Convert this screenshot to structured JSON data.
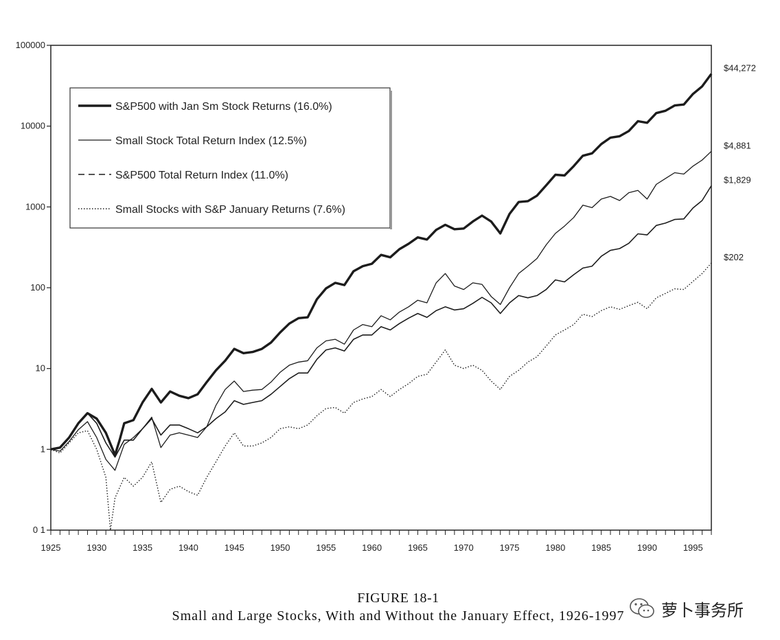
{
  "chart_data": {
    "type": "line",
    "yscale": "log",
    "ylim": [
      0.1,
      100000
    ],
    "xlim": [
      1925,
      1997
    ],
    "y_ticks": [
      {
        "value": 100000,
        "label": "100000"
      },
      {
        "value": 10000,
        "label": "10000"
      },
      {
        "value": 1000,
        "label": "1000"
      },
      {
        "value": 100,
        "label": "100"
      },
      {
        "value": 10,
        "label": "10"
      },
      {
        "value": 1,
        "label": "1"
      },
      {
        "value": 0.1,
        "label": "0 1"
      }
    ],
    "x_ticks": [
      1925,
      1930,
      1935,
      1940,
      1945,
      1950,
      1955,
      1960,
      1965,
      1970,
      1975,
      1980,
      1985,
      1990,
      1995
    ],
    "legend": "top-left",
    "series": [
      {
        "name": "S&P500 with Jan Sm Stock Returns (16.0%)",
        "style": "thick",
        "end_label": "$44,272",
        "end_value": 44272,
        "points": [
          [
            1925,
            1
          ],
          [
            1926,
            1.05
          ],
          [
            1927,
            1.4
          ],
          [
            1928,
            2.1
          ],
          [
            1929,
            2.8
          ],
          [
            1930,
            2.4
          ],
          [
            1931,
            1.6
          ],
          [
            1932,
            0.85
          ],
          [
            1932.5,
            1.3
          ],
          [
            1933,
            2.1
          ],
          [
            1934,
            2.3
          ],
          [
            1935,
            3.8
          ],
          [
            1936,
            5.6
          ],
          [
            1937,
            3.8
          ],
          [
            1938,
            5.2
          ],
          [
            1939,
            4.6
          ],
          [
            1940,
            4.3
          ],
          [
            1941,
            4.8
          ],
          [
            1942,
            6.8
          ],
          [
            1943,
            9.5
          ],
          [
            1944,
            12.5
          ],
          [
            1945,
            17.5
          ],
          [
            1946,
            15.5
          ],
          [
            1947,
            16
          ],
          [
            1948,
            17.5
          ],
          [
            1949,
            21
          ],
          [
            1950,
            28
          ],
          [
            1951,
            36
          ],
          [
            1952,
            42
          ],
          [
            1953,
            43
          ],
          [
            1954,
            72
          ],
          [
            1955,
            98
          ],
          [
            1956,
            115
          ],
          [
            1957,
            108
          ],
          [
            1958,
            160
          ],
          [
            1959,
            185
          ],
          [
            1960,
            198
          ],
          [
            1961,
            255
          ],
          [
            1962,
            238
          ],
          [
            1963,
            300
          ],
          [
            1964,
            350
          ],
          [
            1965,
            420
          ],
          [
            1966,
            395
          ],
          [
            1967,
            520
          ],
          [
            1968,
            600
          ],
          [
            1969,
            530
          ],
          [
            1970,
            540
          ],
          [
            1971,
            660
          ],
          [
            1972,
            780
          ],
          [
            1973,
            660
          ],
          [
            1974,
            470
          ],
          [
            1975,
            820
          ],
          [
            1976,
            1150
          ],
          [
            1977,
            1180
          ],
          [
            1978,
            1380
          ],
          [
            1979,
            1850
          ],
          [
            1980,
            2500
          ],
          [
            1981,
            2450
          ],
          [
            1982,
            3200
          ],
          [
            1983,
            4300
          ],
          [
            1984,
            4600
          ],
          [
            1985,
            6000
          ],
          [
            1986,
            7200
          ],
          [
            1987,
            7500
          ],
          [
            1988,
            8700
          ],
          [
            1989,
            11500
          ],
          [
            1990,
            11000
          ],
          [
            1991,
            14500
          ],
          [
            1992,
            15500
          ],
          [
            1993,
            18000
          ],
          [
            1994,
            18500
          ],
          [
            1995,
            25000
          ],
          [
            1996,
            31000
          ],
          [
            1997,
            44272
          ]
        ]
      },
      {
        "name": "Small Stock Total Return Index (12.5%)",
        "style": "solid",
        "end_label": "$4,881",
        "end_value": 4881,
        "points": [
          [
            1925,
            1
          ],
          [
            1926,
            0.95
          ],
          [
            1927,
            1.25
          ],
          [
            1928,
            1.75
          ],
          [
            1929,
            2.2
          ],
          [
            1930,
            1.4
          ],
          [
            1931,
            0.75
          ],
          [
            1932,
            0.55
          ],
          [
            1933,
            1.15
          ],
          [
            1934,
            1.4
          ],
          [
            1935,
            1.8
          ],
          [
            1936,
            2.5
          ],
          [
            1937,
            1.05
          ],
          [
            1938,
            1.5
          ],
          [
            1939,
            1.6
          ],
          [
            1940,
            1.5
          ],
          [
            1941,
            1.4
          ],
          [
            1942,
            1.9
          ],
          [
            1943,
            3.5
          ],
          [
            1944,
            5.5
          ],
          [
            1945,
            7
          ],
          [
            1946,
            5.2
          ],
          [
            1947,
            5.4
          ],
          [
            1948,
            5.5
          ],
          [
            1949,
            6.8
          ],
          [
            1950,
            9
          ],
          [
            1951,
            11
          ],
          [
            1952,
            12
          ],
          [
            1953,
            12.5
          ],
          [
            1954,
            18
          ],
          [
            1955,
            22
          ],
          [
            1956,
            23
          ],
          [
            1957,
            20
          ],
          [
            1958,
            30
          ],
          [
            1959,
            35
          ],
          [
            1960,
            33
          ],
          [
            1961,
            45
          ],
          [
            1962,
            40
          ],
          [
            1963,
            50
          ],
          [
            1964,
            58
          ],
          [
            1965,
            70
          ],
          [
            1966,
            65
          ],
          [
            1967,
            115
          ],
          [
            1968,
            150
          ],
          [
            1969,
            105
          ],
          [
            1970,
            95
          ],
          [
            1971,
            115
          ],
          [
            1972,
            110
          ],
          [
            1973,
            78
          ],
          [
            1974,
            62
          ],
          [
            1975,
            100
          ],
          [
            1976,
            150
          ],
          [
            1977,
            185
          ],
          [
            1978,
            230
          ],
          [
            1979,
            340
          ],
          [
            1980,
            470
          ],
          [
            1981,
            580
          ],
          [
            1982,
            740
          ],
          [
            1983,
            1050
          ],
          [
            1984,
            980
          ],
          [
            1985,
            1250
          ],
          [
            1986,
            1350
          ],
          [
            1987,
            1200
          ],
          [
            1988,
            1500
          ],
          [
            1989,
            1600
          ],
          [
            1990,
            1250
          ],
          [
            1991,
            1900
          ],
          [
            1992,
            2250
          ],
          [
            1993,
            2650
          ],
          [
            1994,
            2550
          ],
          [
            1995,
            3200
          ],
          [
            1996,
            3800
          ],
          [
            1997,
            4881
          ]
        ]
      },
      {
        "name": "S&P500 Total Return Index (11.0%)",
        "style": "dashed",
        "end_label": "$1,829",
        "end_value": 1829,
        "points": [
          [
            1925,
            1
          ],
          [
            1926,
            1.05
          ],
          [
            1927,
            1.4
          ],
          [
            1928,
            2.1
          ],
          [
            1929,
            2.8
          ],
          [
            1930,
            2.1
          ],
          [
            1931,
            1.2
          ],
          [
            1932,
            0.8
          ],
          [
            1933,
            1.3
          ],
          [
            1934,
            1.3
          ],
          [
            1935,
            1.8
          ],
          [
            1936,
            2.4
          ],
          [
            1937,
            1.5
          ],
          [
            1938,
            2
          ],
          [
            1939,
            2
          ],
          [
            1940,
            1.8
          ],
          [
            1941,
            1.6
          ],
          [
            1942,
            1.9
          ],
          [
            1943,
            2.4
          ],
          [
            1944,
            2.9
          ],
          [
            1945,
            4
          ],
          [
            1946,
            3.6
          ],
          [
            1947,
            3.8
          ],
          [
            1948,
            4
          ],
          [
            1949,
            4.8
          ],
          [
            1950,
            6
          ],
          [
            1951,
            7.5
          ],
          [
            1952,
            8.8
          ],
          [
            1953,
            8.8
          ],
          [
            1954,
            13
          ],
          [
            1955,
            17
          ],
          [
            1956,
            18
          ],
          [
            1957,
            16.5
          ],
          [
            1958,
            23
          ],
          [
            1959,
            26
          ],
          [
            1960,
            26
          ],
          [
            1961,
            33
          ],
          [
            1962,
            30
          ],
          [
            1963,
            36
          ],
          [
            1964,
            42
          ],
          [
            1965,
            48
          ],
          [
            1966,
            43
          ],
          [
            1967,
            52
          ],
          [
            1968,
            58
          ],
          [
            1969,
            53
          ],
          [
            1970,
            55
          ],
          [
            1971,
            64
          ],
          [
            1972,
            76
          ],
          [
            1973,
            65
          ],
          [
            1974,
            48
          ],
          [
            1975,
            65
          ],
          [
            1976,
            80
          ],
          [
            1977,
            75
          ],
          [
            1978,
            80
          ],
          [
            1979,
            95
          ],
          [
            1980,
            125
          ],
          [
            1981,
            118
          ],
          [
            1982,
            145
          ],
          [
            1983,
            175
          ],
          [
            1984,
            185
          ],
          [
            1985,
            245
          ],
          [
            1986,
            290
          ],
          [
            1987,
            305
          ],
          [
            1988,
            355
          ],
          [
            1989,
            465
          ],
          [
            1990,
            450
          ],
          [
            1991,
            590
          ],
          [
            1992,
            630
          ],
          [
            1993,
            700
          ],
          [
            1994,
            710
          ],
          [
            1995,
            970
          ],
          [
            1996,
            1200
          ],
          [
            1997,
            1829
          ]
        ]
      },
      {
        "name": "Small Stocks with S&P January Returns (7.6%)",
        "style": "dotted",
        "end_label": "$202",
        "end_value": 202,
        "points": [
          [
            1925,
            1
          ],
          [
            1926,
            0.9
          ],
          [
            1927,
            1.2
          ],
          [
            1928,
            1.6
          ],
          [
            1929,
            1.7
          ],
          [
            1930,
            1
          ],
          [
            1931,
            0.45
          ],
          [
            1931.5,
            0.1
          ],
          [
            1932,
            0.25
          ],
          [
            1933,
            0.45
          ],
          [
            1934,
            0.35
          ],
          [
            1935,
            0.45
          ],
          [
            1936,
            0.7
          ],
          [
            1937,
            0.22
          ],
          [
            1938,
            0.32
          ],
          [
            1939,
            0.35
          ],
          [
            1940,
            0.3
          ],
          [
            1941,
            0.27
          ],
          [
            1942,
            0.45
          ],
          [
            1943,
            0.7
          ],
          [
            1944,
            1.1
          ],
          [
            1945,
            1.6
          ],
          [
            1946,
            1.1
          ],
          [
            1947,
            1.1
          ],
          [
            1948,
            1.2
          ],
          [
            1949,
            1.4
          ],
          [
            1950,
            1.8
          ],
          [
            1951,
            1.9
          ],
          [
            1952,
            1.8
          ],
          [
            1953,
            2
          ],
          [
            1954,
            2.6
          ],
          [
            1955,
            3.2
          ],
          [
            1956,
            3.3
          ],
          [
            1957,
            2.8
          ],
          [
            1958,
            3.8
          ],
          [
            1959,
            4.2
          ],
          [
            1960,
            4.5
          ],
          [
            1961,
            5.5
          ],
          [
            1962,
            4.5
          ],
          [
            1963,
            5.5
          ],
          [
            1964,
            6.5
          ],
          [
            1965,
            8
          ],
          [
            1966,
            8.5
          ],
          [
            1967,
            12
          ],
          [
            1968,
            17
          ],
          [
            1969,
            11
          ],
          [
            1970,
            10
          ],
          [
            1971,
            11
          ],
          [
            1972,
            9.5
          ],
          [
            1973,
            7
          ],
          [
            1974,
            5.5
          ],
          [
            1975,
            8
          ],
          [
            1976,
            9.5
          ],
          [
            1977,
            12
          ],
          [
            1978,
            14
          ],
          [
            1979,
            19
          ],
          [
            1980,
            26
          ],
          [
            1981,
            30
          ],
          [
            1982,
            35
          ],
          [
            1983,
            47
          ],
          [
            1984,
            44
          ],
          [
            1985,
            52
          ],
          [
            1986,
            58
          ],
          [
            1987,
            54
          ],
          [
            1988,
            60
          ],
          [
            1989,
            66
          ],
          [
            1990,
            55
          ],
          [
            1991,
            75
          ],
          [
            1992,
            85
          ],
          [
            1993,
            97
          ],
          [
            1994,
            95
          ],
          [
            1995,
            120
          ],
          [
            1996,
            150
          ],
          [
            1997,
            202
          ]
        ]
      }
    ]
  },
  "caption": {
    "figure_label": "FIGURE 18-1",
    "title": "Small and Large Stocks, With and Without the January Effect, 1926-1997"
  },
  "watermark": {
    "icon": "wechat-icon",
    "text": "萝卜事务所"
  }
}
